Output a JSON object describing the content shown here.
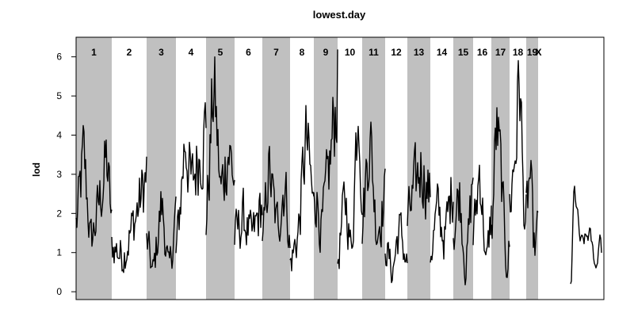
{
  "chart_data": {
    "type": "line",
    "title": "lowest.day",
    "xlabel": "",
    "ylabel": "lod",
    "ylim": [
      -0.2,
      6.5
    ],
    "yticks": [
      0,
      1,
      2,
      3,
      4,
      5,
      6
    ],
    "grid": false,
    "legend": "none",
    "chromosome_band_colors": [
      "#c0c0c0",
      "#ffffff"
    ],
    "line_color": "#000000",
    "chromosomes": [
      {
        "label": "1",
        "shaded": true,
        "peaks": [
          [
            0.0,
            1.7
          ],
          [
            0.2,
            3.5
          ],
          [
            0.4,
            1.2
          ],
          [
            0.6,
            2.1
          ],
          [
            0.85,
            3.4
          ],
          [
            1.0,
            1.5
          ]
        ]
      },
      {
        "label": "2",
        "shaded": false,
        "peaks": [
          [
            0.0,
            1.2
          ],
          [
            0.3,
            0.9
          ],
          [
            0.6,
            1.7
          ],
          [
            0.85,
            2.5
          ],
          [
            1.0,
            3.0
          ]
        ]
      },
      {
        "label": "3",
        "shaded": true,
        "peaks": [
          [
            0.0,
            1.3
          ],
          [
            0.2,
            0.4
          ],
          [
            0.5,
            2.3
          ],
          [
            0.75,
            0.4
          ],
          [
            1.0,
            2.2
          ]
        ]
      },
      {
        "label": "4",
        "shaded": false,
        "peaks": [
          [
            0.0,
            1.0
          ],
          [
            0.3,
            4.1
          ],
          [
            0.5,
            2.6
          ],
          [
            0.75,
            3.6
          ],
          [
            1.0,
            4.3
          ]
        ]
      },
      {
        "label": "5",
        "shaded": true,
        "peaks": [
          [
            0.0,
            1.8
          ],
          [
            0.25,
            5.4
          ],
          [
            0.5,
            2.4
          ],
          [
            0.75,
            3.8
          ],
          [
            1.0,
            2.7
          ]
        ]
      },
      {
        "label": "6",
        "shaded": false,
        "peaks": [
          [
            0.0,
            1.4
          ],
          [
            0.3,
            1.9
          ],
          [
            0.6,
            1.3
          ],
          [
            1.0,
            2.3
          ]
        ]
      },
      {
        "label": "7",
        "shaded": true,
        "peaks": [
          [
            0.0,
            1.0
          ],
          [
            0.2,
            3.3
          ],
          [
            0.5,
            1.6
          ],
          [
            0.8,
            2.9
          ],
          [
            1.0,
            0.9
          ]
        ]
      },
      {
        "label": "8",
        "shaded": false,
        "peaks": [
          [
            0.0,
            0.7
          ],
          [
            0.35,
            1.6
          ],
          [
            0.65,
            4.0
          ],
          [
            1.0,
            1.9
          ]
        ]
      },
      {
        "label": "9",
        "shaded": true,
        "peaks": [
          [
            0.0,
            2.9
          ],
          [
            0.3,
            1.5
          ],
          [
            0.7,
            3.5
          ],
          [
            1.0,
            5.5
          ]
        ]
      },
      {
        "label": "10",
        "shaded": false,
        "peaks": [
          [
            0.0,
            0.8
          ],
          [
            0.3,
            2.5
          ],
          [
            0.55,
            0.9
          ],
          [
            0.85,
            5.8
          ],
          [
            1.0,
            1.3
          ]
        ]
      },
      {
        "label": "11",
        "shaded": true,
        "peaks": [
          [
            0.0,
            1.7
          ],
          [
            0.3,
            4.3
          ],
          [
            0.6,
            1.5
          ],
          [
            1.0,
            2.5
          ]
        ]
      },
      {
        "label": "12",
        "shaded": false,
        "peaks": [
          [
            0.0,
            1.3
          ],
          [
            0.3,
            0.4
          ],
          [
            0.6,
            1.7
          ],
          [
            1.0,
            0.6
          ]
        ]
      },
      {
        "label": "13",
        "shaded": true,
        "peaks": [
          [
            0.0,
            1.8
          ],
          [
            0.3,
            2.6
          ],
          [
            0.6,
            3.3
          ],
          [
            1.0,
            2.3
          ]
        ]
      },
      {
        "label": "14",
        "shaded": false,
        "peaks": [
          [
            0.0,
            1.0
          ],
          [
            0.3,
            2.1
          ],
          [
            0.6,
            1.3
          ],
          [
            1.0,
            3.0
          ]
        ]
      },
      {
        "label": "15",
        "shaded": true,
        "peaks": [
          [
            0.0,
            1.5
          ],
          [
            0.3,
            2.7
          ],
          [
            0.6,
            0.4
          ],
          [
            1.0,
            3.2
          ]
        ]
      },
      {
        "label": "16",
        "shaded": false,
        "peaks": [
          [
            0.0,
            1.4
          ],
          [
            0.35,
            3.3
          ],
          [
            0.7,
            0.5
          ],
          [
            1.0,
            2.3
          ]
        ]
      },
      {
        "label": "17",
        "shaded": true,
        "peaks": [
          [
            0.0,
            1.4
          ],
          [
            0.25,
            4.4
          ],
          [
            0.55,
            2.7
          ],
          [
            0.8,
            0.5
          ],
          [
            1.0,
            1.3
          ]
        ]
      },
      {
        "label": "18",
        "shaded": false,
        "peaks": [
          [
            0.0,
            2.2
          ],
          [
            0.35,
            3.8
          ],
          [
            0.6,
            5.9
          ],
          [
            0.8,
            2.0
          ],
          [
            1.0,
            1.9
          ]
        ]
      },
      {
        "label": "19",
        "shaded": true,
        "peaks": [
          [
            0.0,
            2.0
          ],
          [
            0.3,
            3.2
          ],
          [
            0.6,
            0.9
          ],
          [
            1.0,
            1.7
          ]
        ]
      },
      {
        "label": "X",
        "shaded": false,
        "peaks": [
          [
            0.0,
            0.0
          ],
          [
            0.52,
            0.4
          ],
          [
            0.55,
            2.9
          ],
          [
            0.65,
            1.2
          ],
          [
            0.8,
            1.5
          ],
          [
            0.9,
            0.5
          ],
          [
            0.97,
            1.8
          ],
          [
            1.0,
            0.0
          ]
        ]
      }
    ]
  }
}
